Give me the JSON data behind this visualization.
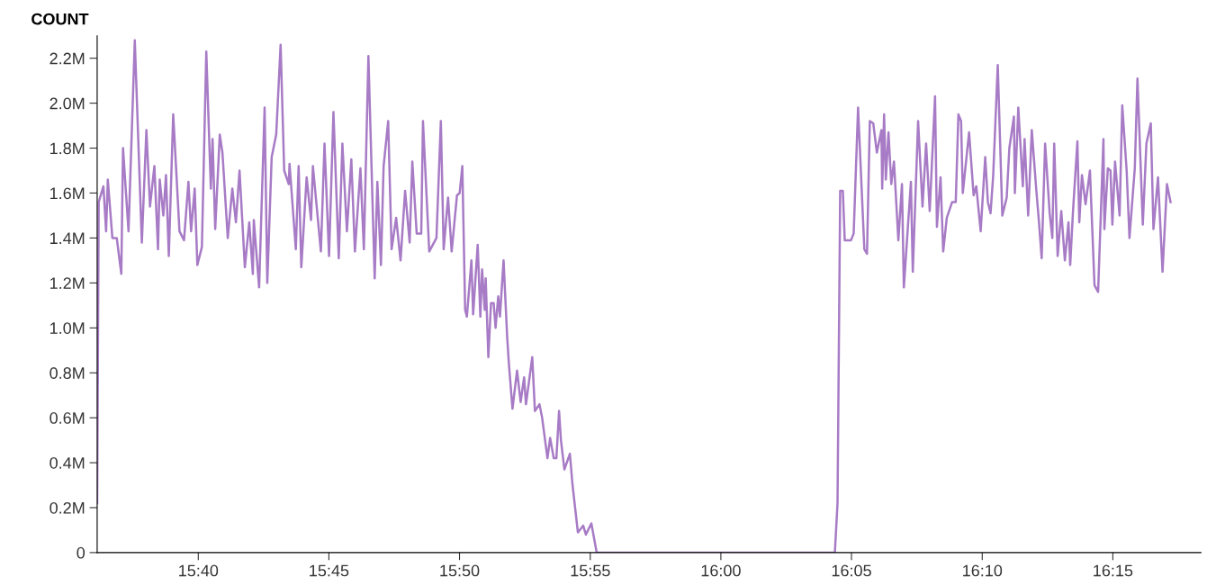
{
  "chart_data": {
    "type": "line",
    "ylabel": "COUNT",
    "xlim": [
      15.6022,
      16.3062
    ],
    "ylim": [
      0,
      2300000
    ],
    "xticks": [
      {
        "value": 15.6667,
        "label": "15:40"
      },
      {
        "value": 15.75,
        "label": "15:45"
      },
      {
        "value": 15.8333,
        "label": "15:50"
      },
      {
        "value": 15.9167,
        "label": "15:55"
      },
      {
        "value": 16.0,
        "label": "16:00"
      },
      {
        "value": 16.0833,
        "label": "16:05"
      },
      {
        "value": 16.1667,
        "label": "16:10"
      },
      {
        "value": 16.25,
        "label": "16:15"
      }
    ],
    "yticks": [
      0,
      {
        "value": 200000,
        "label": "0.2M"
      },
      {
        "value": 400000,
        "label": "0.4M"
      },
      {
        "value": 600000,
        "label": "0.6M"
      },
      {
        "value": 800000,
        "label": "0.8M"
      },
      {
        "value": 1000000,
        "label": "1.0M"
      },
      {
        "value": 1200000,
        "label": "1.2M"
      },
      {
        "value": 1400000,
        "label": "1.4M"
      },
      {
        "value": 1600000,
        "label": "1.6M"
      },
      {
        "value": 1800000,
        "label": "1.8M"
      },
      {
        "value": 2000000,
        "label": "2.0M"
      },
      {
        "value": 2200000,
        "label": "2.2M"
      }
    ],
    "grid": false,
    "marker": "none",
    "line_style": "solid",
    "series": [
      {
        "color": "#a77bc5",
        "x": [
          15.6022,
          15.6032,
          15.6062,
          15.6079,
          15.609,
          15.6119,
          15.6147,
          15.6176,
          15.6187,
          15.6222,
          15.6262,
          15.6307,
          15.6336,
          15.6359,
          15.6387,
          15.641,
          15.6421,
          15.6444,
          15.6461,
          15.6479,
          15.6507,
          15.6547,
          15.6576,
          15.6604,
          15.6621,
          15.6644,
          15.6661,
          15.669,
          15.6718,
          15.6747,
          15.6758,
          15.6775,
          15.6804,
          15.6821,
          15.6855,
          15.6884,
          15.6907,
          15.693,
          15.6964,
          15.6992,
          15.7015,
          15.7021,
          15.7055,
          15.709,
          15.7107,
          15.7135,
          15.7164,
          15.7192,
          15.7215,
          15.7244,
          15.7249,
          15.7289,
          15.7307,
          15.7324,
          15.7358,
          15.7386,
          15.7398,
          15.7449,
          15.7472,
          15.7501,
          15.7529,
          15.7563,
          15.7586,
          15.7615,
          15.7643,
          15.7666,
          15.7701,
          15.7723,
          15.7752,
          15.7792,
          15.7809,
          15.7832,
          15.7849,
          15.7878,
          15.79,
          15.7929,
          15.7957,
          15.7986,
          15.8015,
          15.8032,
          15.806,
          15.8089,
          15.81,
          15.814,
          15.8186,
          15.8214,
          15.8232,
          15.826,
          15.8283,
          15.8317,
          15.8334,
          15.8351,
          15.8369,
          15.838,
          15.8409,
          15.842,
          15.8449,
          15.8466,
          15.8477,
          15.8494,
          15.85,
          15.8517,
          15.8534,
          15.8551,
          15.8563,
          15.858,
          15.8591,
          15.8614,
          15.8637,
          15.8648,
          15.8671,
          15.87,
          15.8723,
          15.8745,
          15.8757,
          15.8797,
          15.8814,
          15.8843,
          15.886,
          15.8894,
          15.8911,
          15.8934,
          15.8951,
          15.8968,
          15.898,
          15.9002,
          15.9037,
          15.9054,
          15.9088,
          15.9122,
          15.9139,
          15.9174,
          15.9208,
          16.0727,
          16.0744,
          16.0761,
          16.0778,
          16.079,
          16.083,
          16.0847,
          16.0875,
          16.0915,
          16.0932,
          16.095,
          16.0972,
          16.0995,
          16.1024,
          16.1029,
          16.1041,
          16.1052,
          16.1069,
          16.1087,
          16.1104,
          16.1132,
          16.1155,
          16.1167,
          16.1212,
          16.1224,
          16.1258,
          16.1286,
          16.1309,
          16.1332,
          16.1366,
          16.1378,
          16.1401,
          16.1418,
          16.1441,
          16.1475,
          16.1498,
          16.1515,
          16.1532,
          16.1543,
          16.1583,
          16.1612,
          16.1629,
          16.1657,
          16.1686,
          16.1703,
          16.172,
          16.1737,
          16.1766,
          16.1795,
          16.1823,
          16.184,
          16.1869,
          16.1875,
          16.1897,
          16.1926,
          16.1937,
          16.196,
          16.1983,
          16.2011,
          16.2029,
          16.2046,
          16.2068,
          16.2097,
          16.2114,
          16.2126,
          16.2148,
          16.2171,
          16.2194,
          16.2217,
          16.2228,
          16.2246,
          16.2274,
          16.2286,
          16.2303,
          16.2326,
          16.2354,
          16.2383,
          16.2406,
          16.244,
          16.2446,
          16.2468,
          16.2485,
          16.2497,
          16.2514,
          16.2543,
          16.256,
          16.2588,
          16.2606,
          16.264,
          16.2657,
          16.2691,
          16.2714,
          16.2742,
          16.2759,
          16.2788,
          16.2817,
          16.2845,
          16.2868
        ],
        "values": [
          220000,
          1560000,
          1630000,
          1430000,
          1660000,
          1400000,
          1400000,
          1240000,
          1800000,
          1430000,
          2280000,
          1380000,
          1880000,
          1540000,
          1720000,
          1350000,
          1660000,
          1500000,
          1680000,
          1320000,
          1950000,
          1430000,
          1390000,
          1650000,
          1430000,
          1620000,
          1280000,
          1360000,
          2230000,
          1620000,
          1840000,
          1440000,
          1860000,
          1780000,
          1400000,
          1620000,
          1470000,
          1700000,
          1270000,
          1470000,
          1240000,
          1480000,
          1180000,
          1980000,
          1200000,
          1760000,
          1860000,
          2260000,
          1700000,
          1640000,
          1730000,
          1350000,
          1720000,
          1270000,
          1670000,
          1480000,
          1720000,
          1340000,
          1820000,
          1320000,
          1960000,
          1310000,
          1820000,
          1430000,
          1750000,
          1340000,
          1710000,
          1350000,
          2210000,
          1220000,
          1650000,
          1280000,
          1720000,
          1920000,
          1350000,
          1490000,
          1300000,
          1610000,
          1380000,
          1740000,
          1420000,
          1420000,
          1920000,
          1340000,
          1400000,
          1920000,
          1350000,
          1580000,
          1340000,
          1590000,
          1600000,
          1720000,
          1080000,
          1050000,
          1300000,
          1060000,
          1370000,
          1050000,
          1260000,
          1080000,
          1220000,
          870000,
          1110000,
          1110000,
          1000000,
          1140000,
          1050000,
          1300000,
          960000,
          840000,
          640000,
          810000,
          670000,
          780000,
          660000,
          870000,
          630000,
          660000,
          600000,
          420000,
          510000,
          420000,
          420000,
          630000,
          500000,
          370000,
          440000,
          300000,
          90000,
          120000,
          80000,
          130000,
          0,
          0,
          220000,
          1610000,
          1610000,
          1390000,
          1390000,
          1420000,
          1980000,
          1350000,
          1330000,
          1920000,
          1910000,
          1780000,
          1880000,
          1620000,
          1950000,
          1660000,
          1870000,
          1640000,
          1740000,
          1390000,
          1640000,
          1180000,
          1650000,
          1250000,
          1920000,
          1540000,
          1820000,
          1520000,
          2030000,
          1450000,
          1670000,
          1340000,
          1490000,
          1560000,
          1560000,
          1950000,
          1920000,
          1600000,
          1870000,
          1590000,
          1630000,
          1430000,
          1760000,
          1560000,
          1510000,
          1680000,
          2170000,
          1500000,
          1580000,
          1800000,
          1940000,
          1600000,
          1980000,
          1630000,
          1840000,
          1500000,
          1880000,
          1620000,
          1470000,
          1310000,
          1820000,
          1510000,
          1400000,
          1820000,
          1320000,
          1520000,
          1300000,
          1470000,
          1280000,
          1520000,
          1830000,
          1470000,
          1680000,
          1550000,
          1700000,
          1190000,
          1160000,
          1840000,
          1440000,
          1710000,
          1700000,
          1460000,
          1740000,
          1500000,
          1990000,
          1700000,
          1400000,
          1710000,
          2110000,
          1460000,
          1820000,
          1910000,
          1440000,
          1670000,
          1250000,
          1640000,
          1560000
        ]
      }
    ]
  }
}
